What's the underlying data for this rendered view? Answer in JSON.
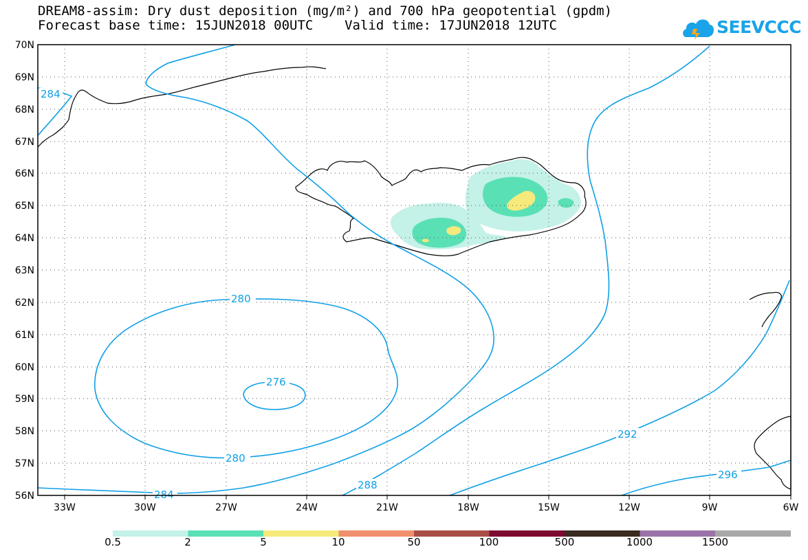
{
  "header": {
    "line1": "DREAM8-assim: Dry dust deposition (mg/m²) and 700 hPa geopotential (gpdm)",
    "line2": "Forecast base time: 15JUN2018 00UTC    Valid time: 17JUN2018 12UTC"
  },
  "logo": {
    "text": "SEEVCCC",
    "icon": "cloud-logo-icon",
    "color": "#1aa3e8"
  },
  "map": {
    "lat_labels": [
      "70N",
      "69N",
      "68N",
      "67N",
      "66N",
      "65N",
      "64N",
      "63N",
      "62N",
      "61N",
      "60N",
      "59N",
      "58N",
      "57N",
      "56N"
    ],
    "lon_labels": [
      "33W",
      "30W",
      "27W",
      "24W",
      "21W",
      "18W",
      "15W",
      "12W",
      "9W",
      "6W"
    ],
    "contour_color": "#0e9fe6",
    "contour_labels": [
      "284",
      "280",
      "276",
      "280",
      "284",
      "288",
      "292",
      "296"
    ]
  },
  "colorbar": {
    "colors": [
      "#c4f1e8",
      "#5ae0b5",
      "#f6ea7c",
      "#ef8f6b",
      "#a84e47",
      "#7e0a32",
      "#3a2b20",
      "#9a73a8",
      "#a8a8a8"
    ],
    "labels": [
      "0.5",
      "2",
      "5",
      "10",
      "50",
      "100",
      "500",
      "1000",
      "1500"
    ]
  }
}
